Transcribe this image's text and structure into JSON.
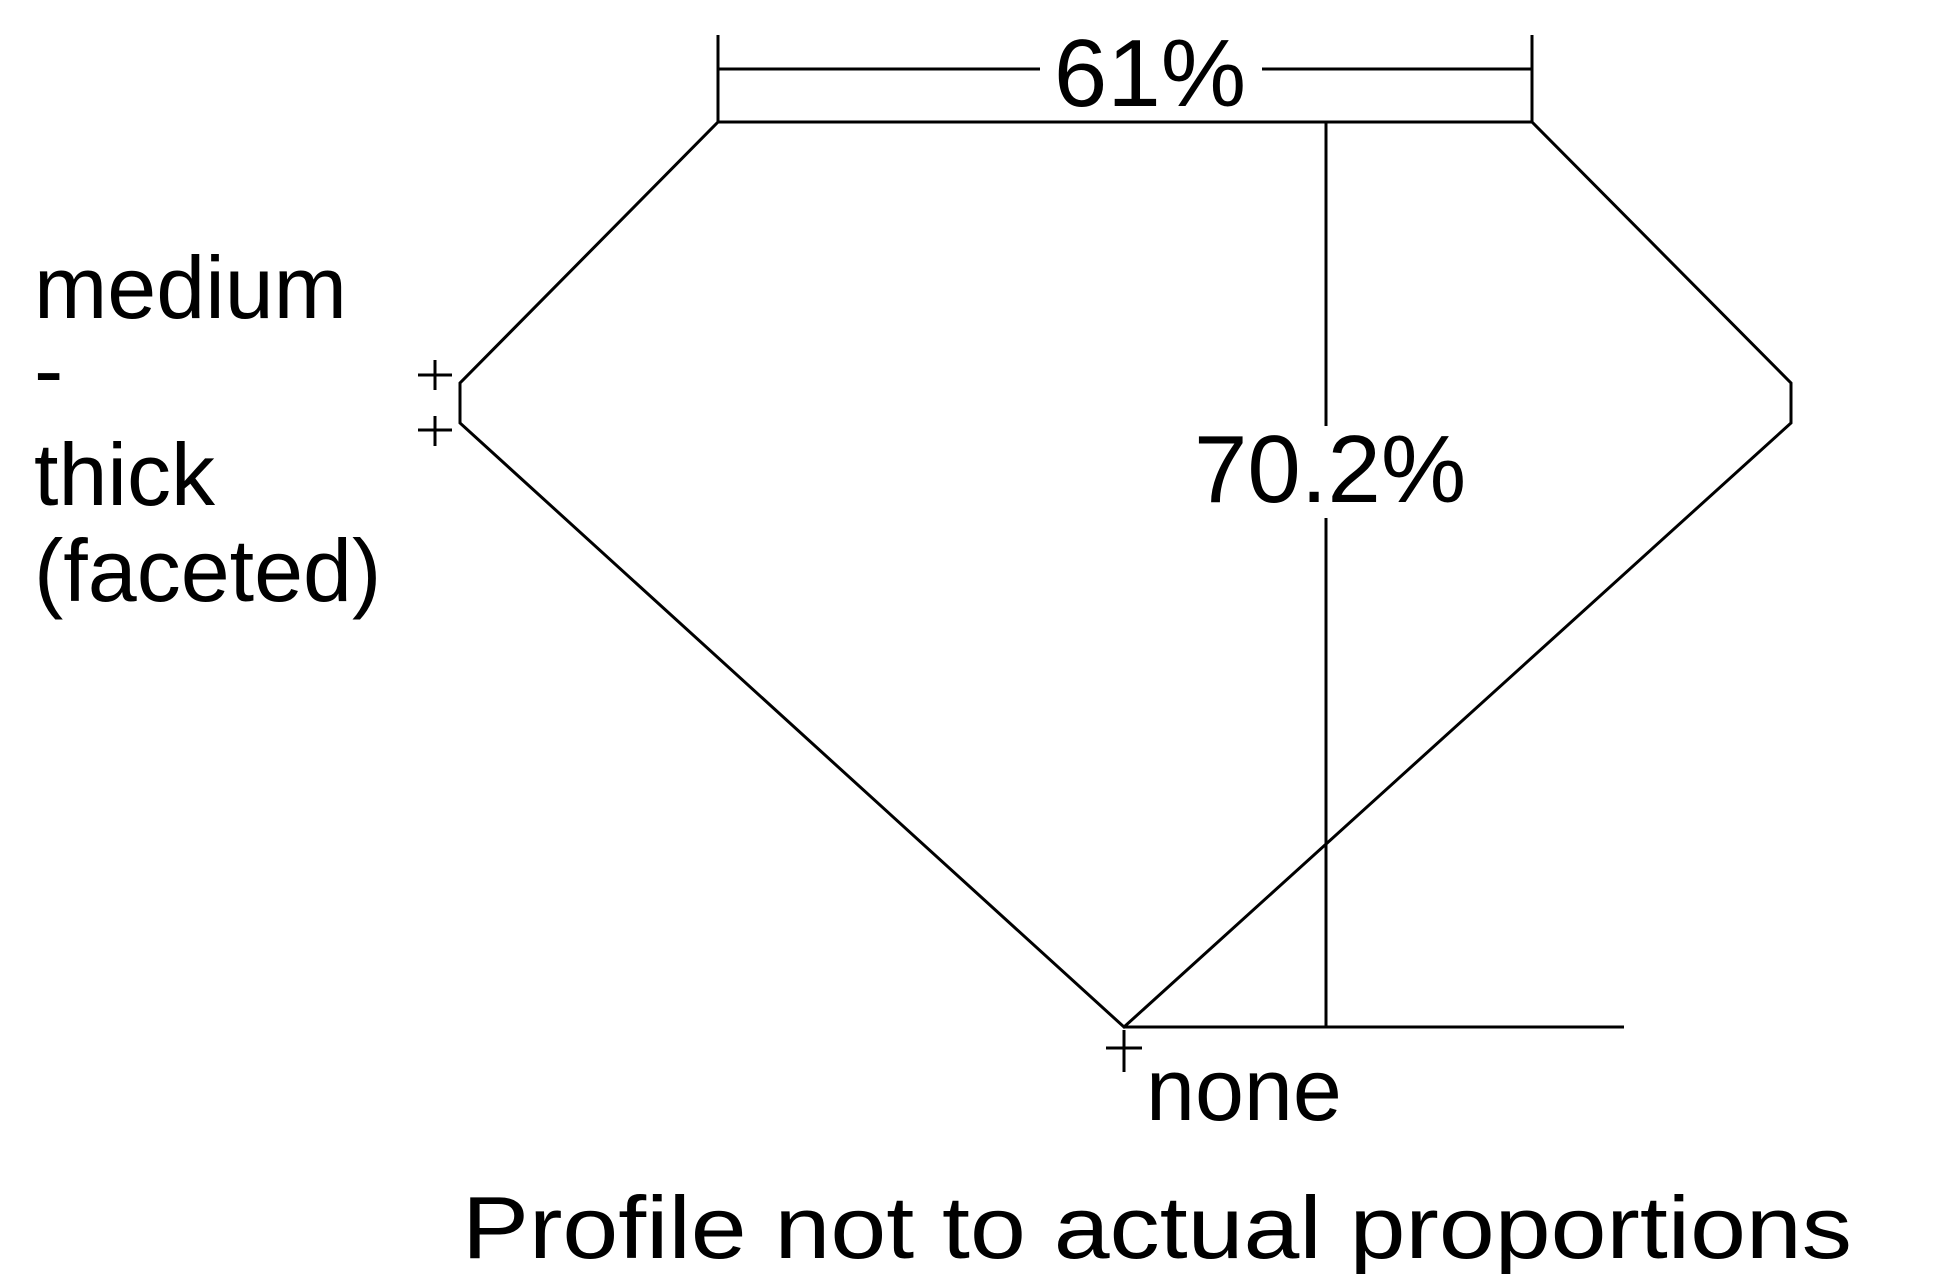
{
  "diagram": {
    "table_percent": "61%",
    "depth_percent": "70.2%",
    "girdle_lines": [
      "medium",
      "-",
      "thick",
      "(faceted)"
    ],
    "culet": "none",
    "footnote": "Profile not to actual proportions"
  }
}
